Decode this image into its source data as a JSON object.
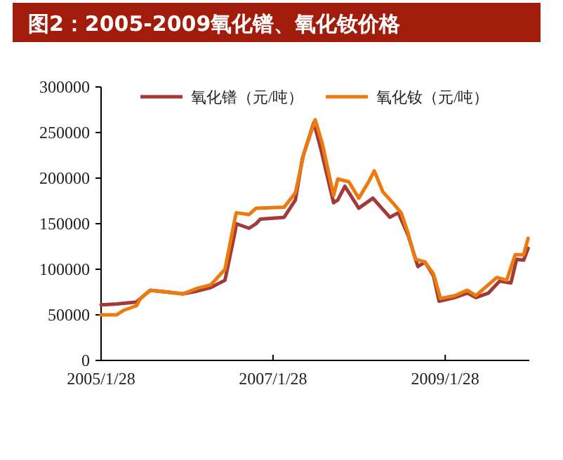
{
  "chart_data": {
    "type": "line",
    "title": "图2：2005-2009氧化镨、氧化钕价格",
    "xlim": [
      "2005-01-28",
      "2010-01-20"
    ],
    "xticks": [
      {
        "value": "2005-01-28",
        "label": "2005/1/28"
      },
      {
        "value": "2007-01-28",
        "label": "2007/1/28"
      },
      {
        "value": "2009-01-28",
        "label": "2009/1/28"
      }
    ],
    "ylim": [
      0,
      300000
    ],
    "yticks": [
      0,
      50000,
      100000,
      150000,
      200000,
      250000,
      300000
    ],
    "grid": false,
    "legend": "top",
    "marker": "none",
    "line_style": "solid",
    "series": [
      {
        "name": "氧化镨（元/吨）",
        "color": "#a33a3a",
        "x": [
          "2005-01-28",
          "2005-04-04",
          "2005-06-27",
          "2005-07-14",
          "2005-08-25",
          "2006-01-10",
          "2006-03-11",
          "2006-05-09",
          "2006-07-08",
          "2006-08-19",
          "2006-08-25",
          "2006-10-18",
          "2006-11-17",
          "2006-12-05",
          "2007-03-16",
          "2007-05-03",
          "2007-06-02",
          "2007-07-20",
          "2007-08-19",
          "2007-10-12",
          "2007-10-30",
          "2007-11-29",
          "2008-01-27",
          "2008-03-27",
          "2008-06-07",
          "2008-07-13",
          "2008-08-24",
          "2008-10-04",
          "2008-11-03",
          "2008-12-09",
          "2009-01-02",
          "2009-03-09",
          "2009-05-02",
          "2009-06-07",
          "2009-07-31",
          "2009-09-16",
          "2009-11-03",
          "2009-11-27",
          "2009-12-27",
          "2010-01-15"
        ],
        "values": [
          61000,
          62000,
          64000,
          68000,
          77000,
          73000,
          76000,
          80000,
          88000,
          140000,
          150000,
          145000,
          150000,
          155000,
          157000,
          176000,
          222000,
          261000,
          232000,
          173000,
          176000,
          191000,
          167000,
          178000,
          157000,
          162000,
          137000,
          103000,
          108000,
          93000,
          65000,
          69000,
          74000,
          69000,
          74000,
          87000,
          85000,
          111000,
          110000,
          123000
        ]
      },
      {
        "name": "氧化钕（元/吨）",
        "color": "#ec7a0e",
        "x": [
          "2005-01-28",
          "2005-04-04",
          "2005-05-04",
          "2005-06-27",
          "2005-07-14",
          "2005-08-25",
          "2006-01-10",
          "2006-03-11",
          "2006-05-09",
          "2006-07-08",
          "2006-08-19",
          "2006-08-25",
          "2006-10-18",
          "2006-11-17",
          "2007-03-16",
          "2007-05-03",
          "2007-06-08",
          "2007-07-26",
          "2007-08-25",
          "2007-10-12",
          "2007-10-30",
          "2007-12-16",
          "2008-01-27",
          "2008-03-09",
          "2008-04-02",
          "2008-05-08",
          "2008-06-19",
          "2008-07-25",
          "2008-08-24",
          "2008-09-23",
          "2008-11-03",
          "2008-12-09",
          "2009-01-08",
          "2009-03-09",
          "2009-05-02",
          "2009-06-07",
          "2009-09-04",
          "2009-10-16",
          "2009-11-21",
          "2009-12-27",
          "2010-01-15"
        ],
        "values": [
          50000,
          50000,
          55000,
          60000,
          68000,
          77000,
          73000,
          79000,
          83000,
          100000,
          155000,
          162000,
          160000,
          167000,
          168000,
          184000,
          227000,
          264000,
          238000,
          181000,
          199000,
          196000,
          178000,
          196000,
          208000,
          185000,
          173000,
          162000,
          139000,
          111000,
          108000,
          95000,
          68000,
          71000,
          77000,
          71000,
          91000,
          88000,
          116000,
          116000,
          134000
        ]
      }
    ]
  }
}
